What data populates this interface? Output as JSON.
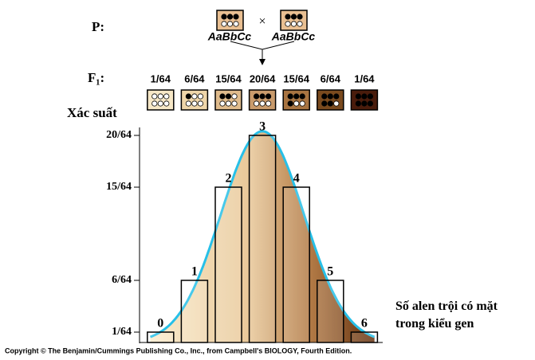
{
  "chart_data": {
    "type": "bar",
    "p_label": "P:",
    "f1_label": "F₁:",
    "cross_symbol": "×",
    "parents": [
      "AaBbCc",
      "AaBbCc"
    ],
    "y_axis_label": "Xác suất",
    "x_axis_label": "Số alen trội có mặt trong kiểu gen",
    "categories": [
      "0",
      "1",
      "2",
      "3",
      "4",
      "5",
      "6"
    ],
    "values": [
      1,
      6,
      15,
      20,
      15,
      6,
      1
    ],
    "value_labels": [
      "1/64",
      "6/64",
      "15/64",
      "20/64",
      "15/64",
      "6/64",
      "1/64"
    ],
    "box_colors": [
      "#f6e7c6",
      "#eed5a9",
      "#dfbb8c",
      "#c99b6c",
      "#a87441",
      "#7a4a1e",
      "#4a1c0c"
    ],
    "parent_color": "#e9bf92",
    "ylim": [
      0,
      20
    ],
    "yticks": [
      {
        "value": 1,
        "label": "1/64"
      },
      {
        "value": 6,
        "label": "6/64"
      },
      {
        "value": 15,
        "label": "15/64"
      },
      {
        "value": 20,
        "label": "20/64"
      }
    ],
    "source": "Copyright © The Benjamin/Cummings Publishing Co., Inc., from Campbell's BIOLOGY, Fourth Edition."
  }
}
